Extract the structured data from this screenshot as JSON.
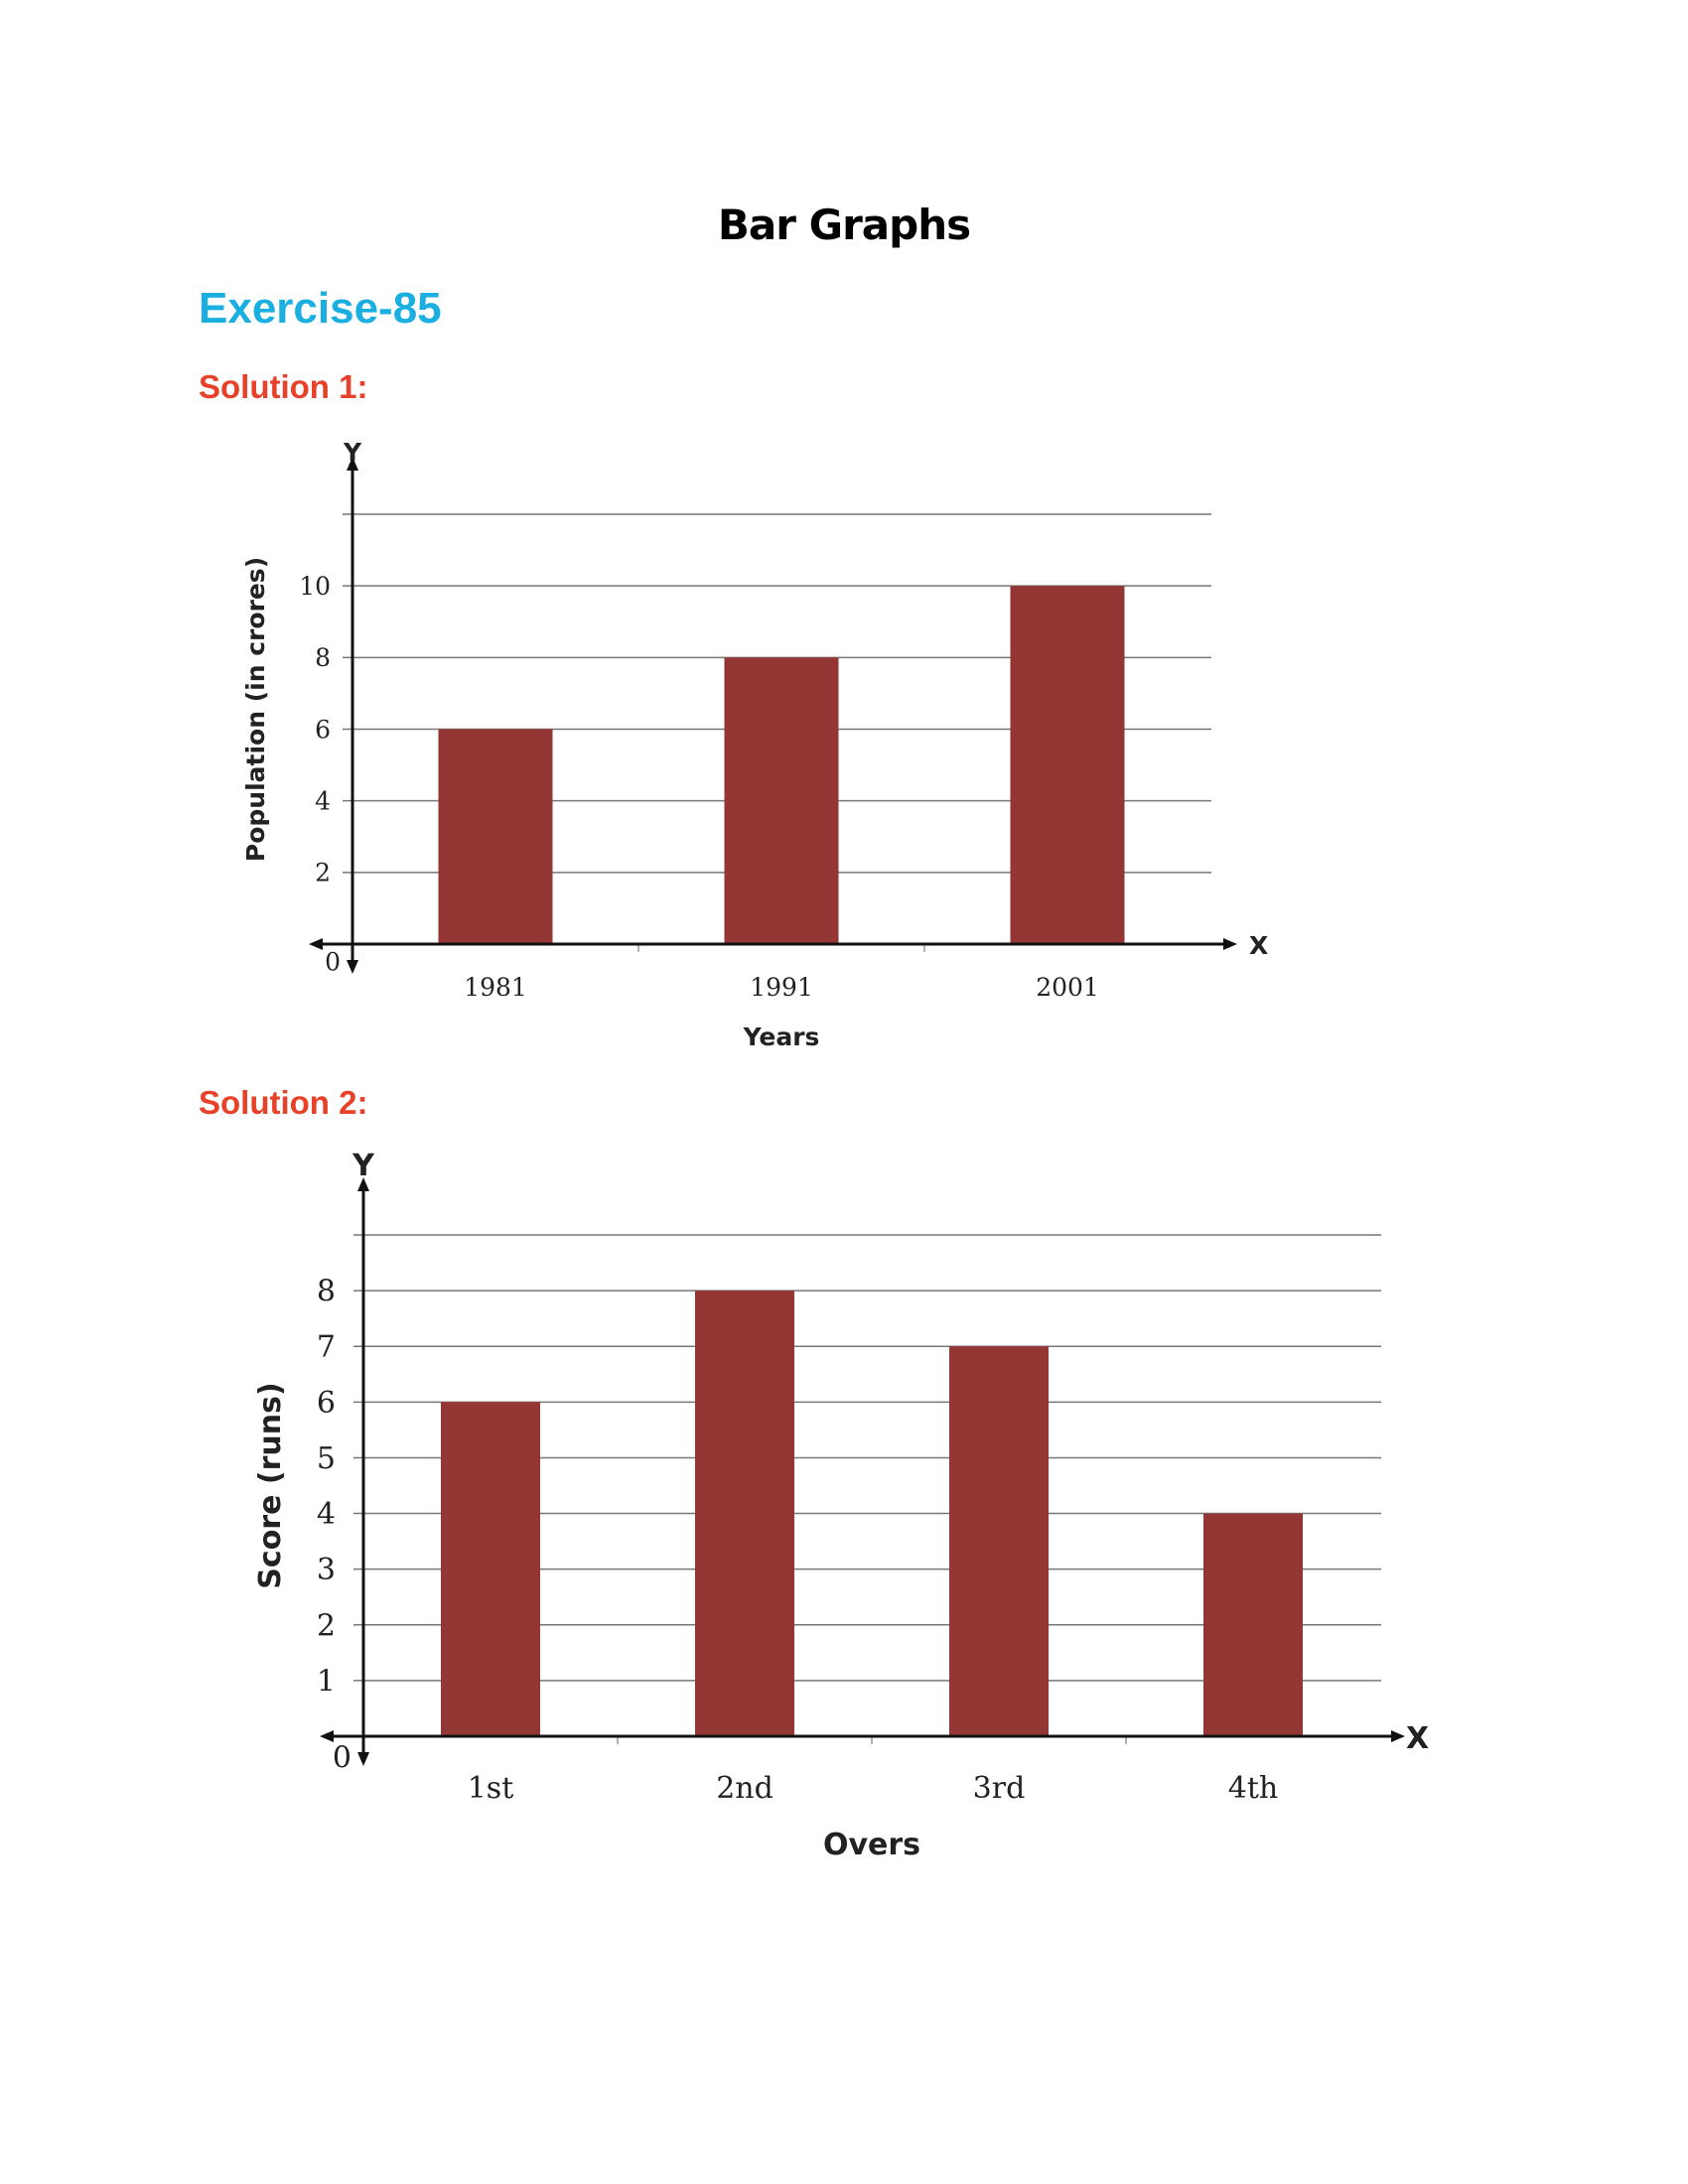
{
  "page_title": "Bar Graphs",
  "exercise": "Exercise-85",
  "solutions": [
    "Solution 1:",
    "Solution 2:"
  ],
  "chart_data": [
    {
      "type": "bar",
      "categories": [
        "1981",
        "1991",
        "2001"
      ],
      "values": [
        6,
        8,
        10
      ],
      "xlabel": "Years",
      "ylabel": "Population (in crores)",
      "yticks": [
        "2",
        "4",
        "6",
        "8",
        "10"
      ],
      "ylim": [
        0,
        12
      ],
      "origin_label": "0",
      "x_axis_letter": "X",
      "y_axis_letter": "Y",
      "grid": true,
      "bar_color": "#943634"
    },
    {
      "type": "bar",
      "categories": [
        "1st",
        "2nd",
        "3rd",
        "4th"
      ],
      "values": [
        6,
        8,
        7,
        4
      ],
      "xlabel": "Overs",
      "ylabel": "Score (runs)",
      "yticks": [
        "1",
        "2",
        "3",
        "4",
        "5",
        "6",
        "7",
        "8"
      ],
      "ylim": [
        0,
        9
      ],
      "origin_label": "0",
      "x_axis_letter": "X",
      "y_axis_letter": "Y",
      "grid": true,
      "bar_color": "#943634"
    }
  ]
}
